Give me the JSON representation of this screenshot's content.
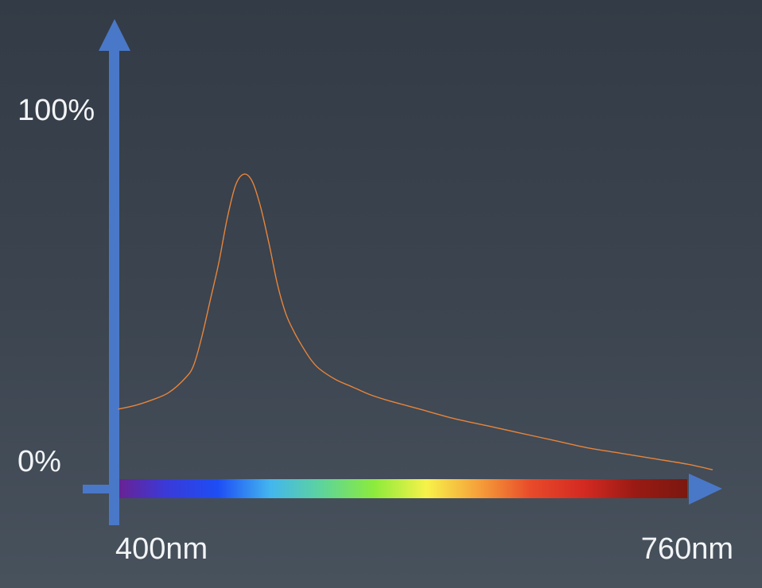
{
  "chart_data": {
    "type": "line",
    "xlabel": "",
    "ylabel": "",
    "x_tick_labels": [
      "400nm",
      "760nm"
    ],
    "y_tick_labels": [
      "100%",
      "0%"
    ],
    "xlim": [
      400,
      760
    ],
    "ylim": [
      0,
      100
    ],
    "x_unit": "nm",
    "y_unit": "%",
    "grid": false,
    "legend": "none",
    "colors": {
      "axis": "#4a78c8",
      "curve": "#e8843a",
      "background_top": "#333b46",
      "background_bottom": "#48525d",
      "text": "#f2f4f6"
    },
    "spectrum_colors": [
      "#6e1f8c",
      "#3a3ad8",
      "#1e4df5",
      "#43b6ee",
      "#5ed49a",
      "#8ceb3c",
      "#f7f24a",
      "#f5a03a",
      "#e84a2a",
      "#d42a22",
      "#9a1a14",
      "#7a1810"
    ],
    "series": [
      {
        "x": [
          400,
          410,
          420,
          430,
          440,
          445,
          450,
          455,
          460,
          465,
          470,
          475,
          480,
          485,
          490,
          495,
          500,
          505,
          510,
          515,
          520,
          530,
          540,
          550,
          560,
          580,
          600,
          620,
          640,
          660,
          680,
          700,
          720,
          740,
          755
        ],
        "y": [
          18,
          19,
          20.5,
          22.5,
          26.5,
          30,
          38,
          48,
          58,
          70,
          79,
          82,
          80,
          73,
          63,
          52,
          44,
          39,
          35,
          31.5,
          29,
          26,
          24,
          22,
          20.5,
          18,
          15.5,
          13.5,
          11.5,
          9.5,
          7.5,
          6,
          4.5,
          3,
          1.5
        ]
      }
    ]
  }
}
